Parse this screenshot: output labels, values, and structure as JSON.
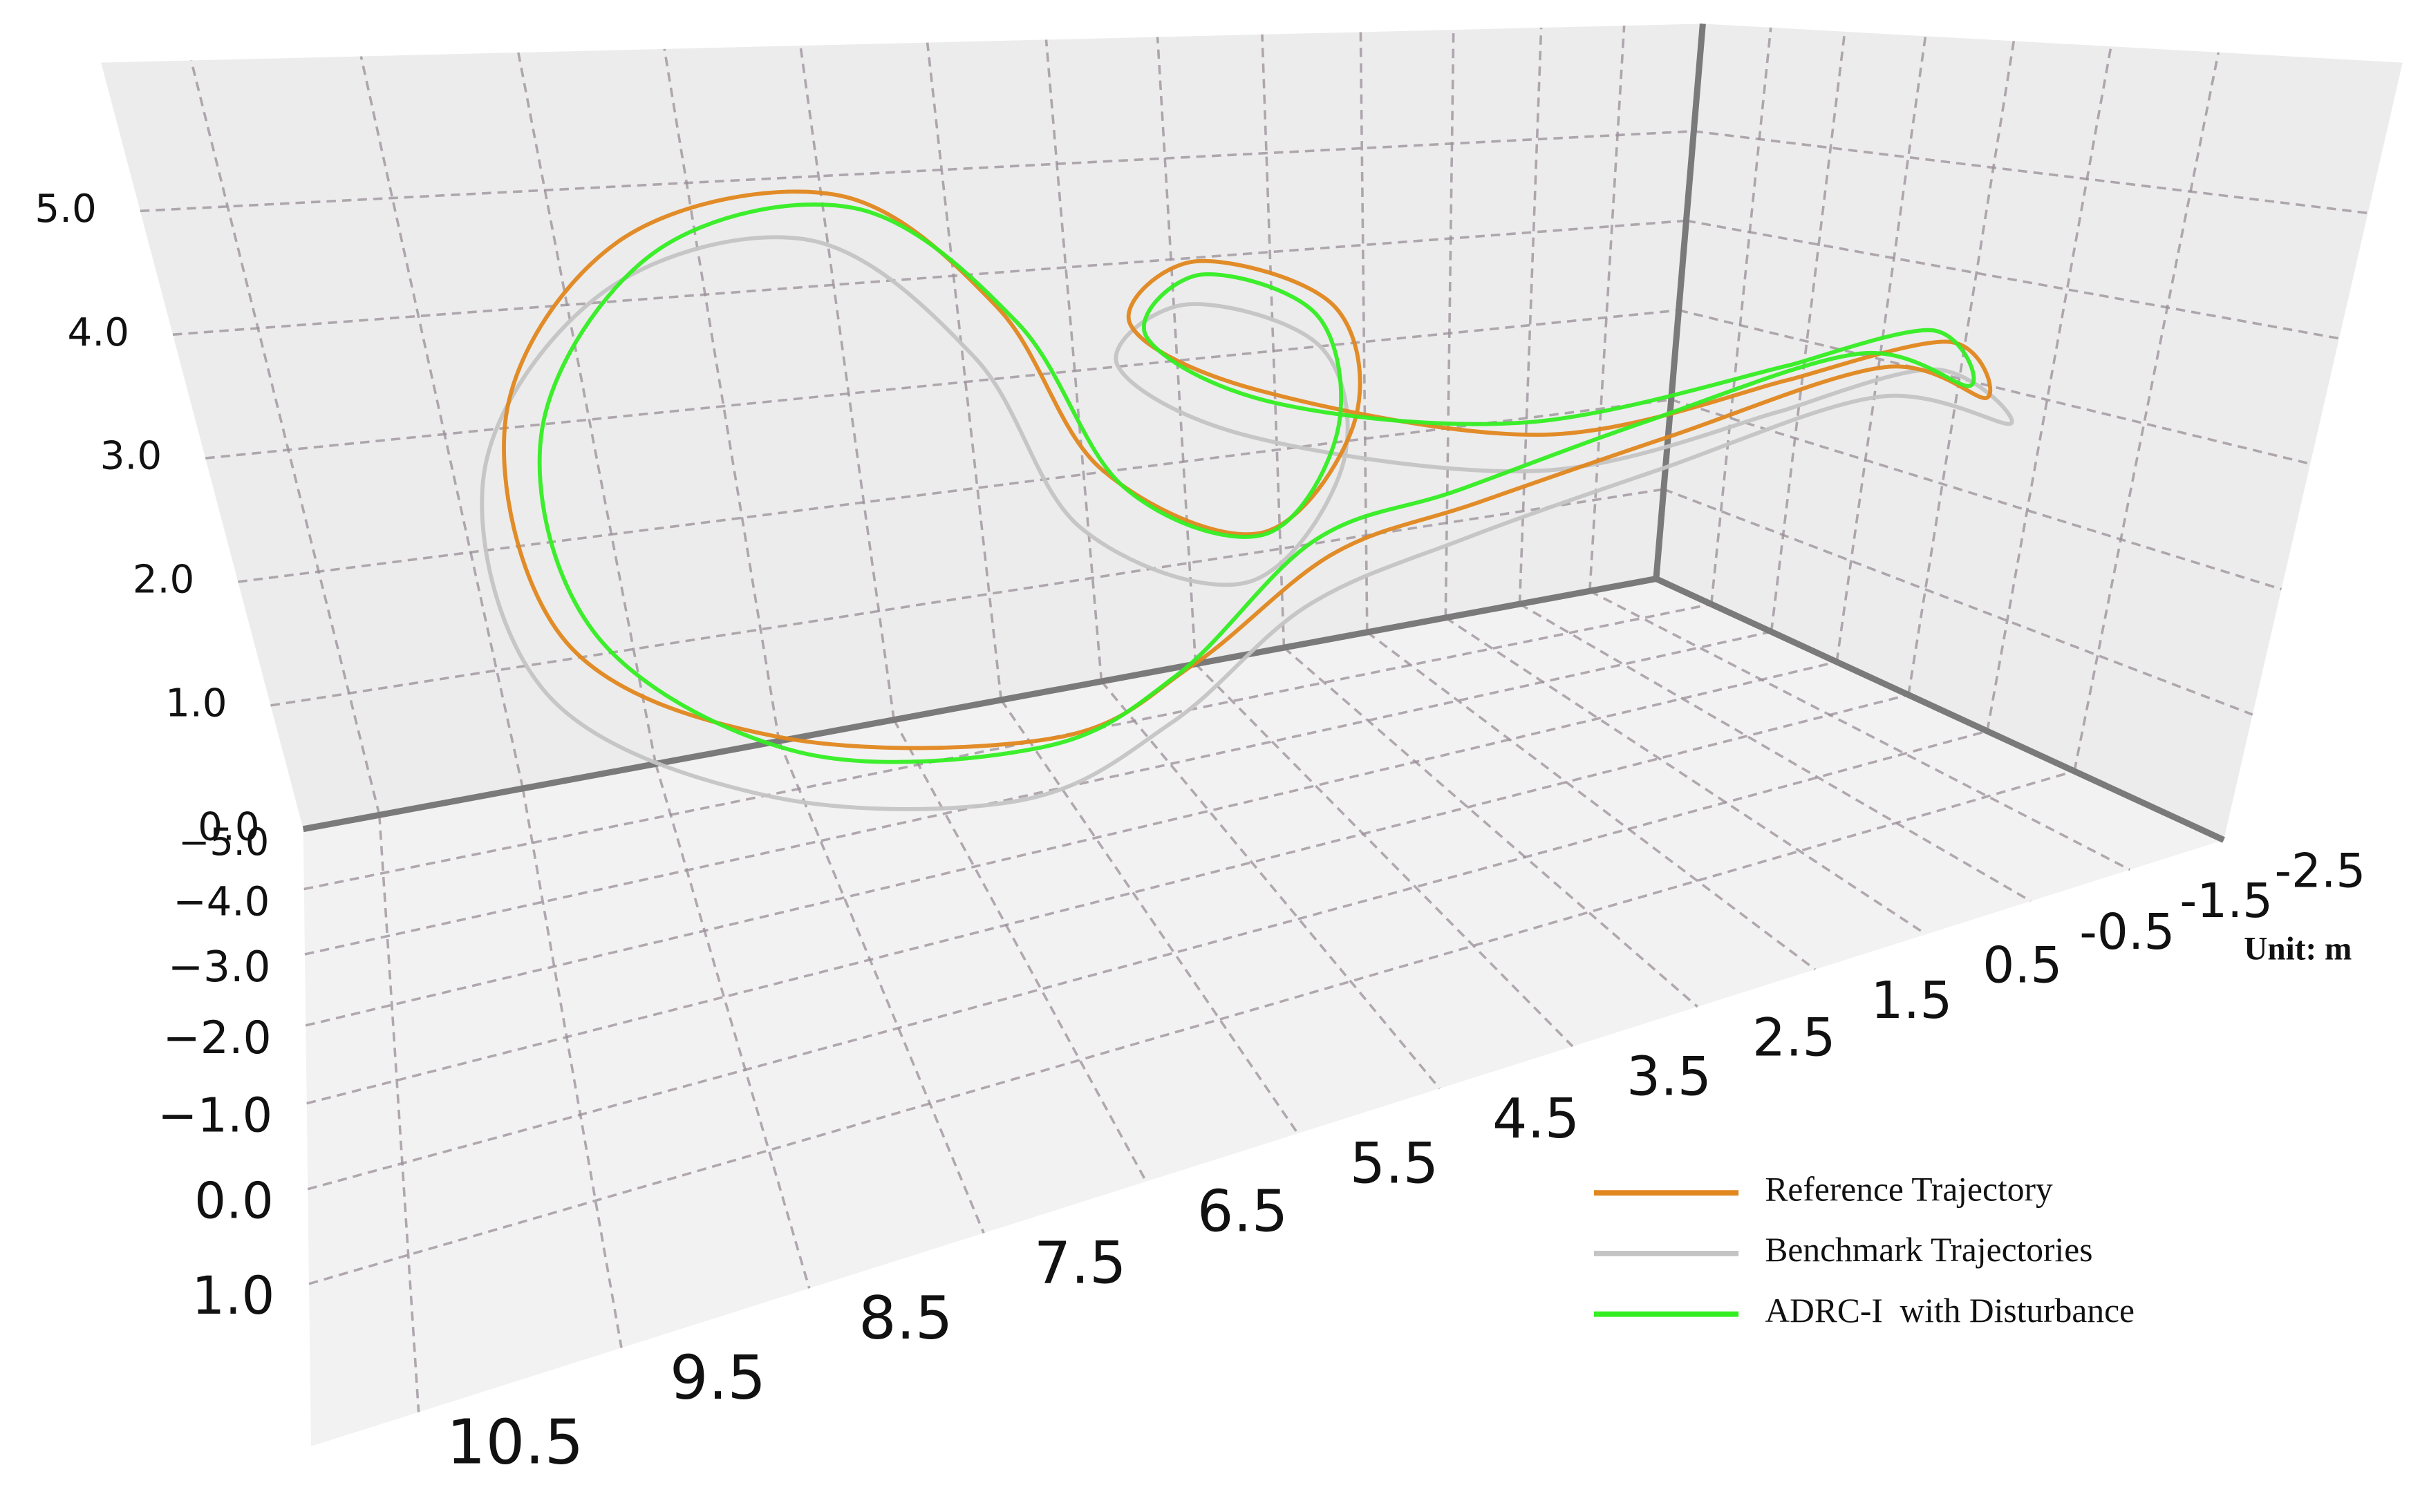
{
  "chart_data": {
    "type": "line3d",
    "annotation": "Unit: m",
    "xlim": [
      11,
      -2.5
    ],
    "ylim": [
      -5,
      2.5
    ],
    "zlim": [
      0,
      6.2
    ],
    "xticks": [
      10.5,
      9.5,
      8.5,
      7.5,
      6.5,
      5.5,
      4.5,
      3.5,
      2.5,
      1.5,
      0.5,
      -0.5,
      -1.5,
      -2.5
    ],
    "yticks": [
      {
        "value": -5,
        "label": "−5.0"
      },
      {
        "value": -4,
        "label": "−4.0"
      },
      {
        "value": -3,
        "label": "−3.0"
      },
      {
        "value": -2,
        "label": "−2.0"
      },
      {
        "value": -1,
        "label": "−1.0"
      },
      {
        "value": 0,
        "label": "0.0"
      },
      {
        "value": 1,
        "label": "1.0"
      }
    ],
    "zticks": [
      {
        "value": 0,
        "label": "0.0"
      },
      {
        "value": 1,
        "label": "1.0"
      },
      {
        "value": 2,
        "label": "2.0"
      },
      {
        "value": 3,
        "label": "3.0"
      },
      {
        "value": 4,
        "label": "4.0"
      },
      {
        "value": 5,
        "label": "5.0"
      }
    ],
    "grid": true,
    "legend": "lower-right",
    "series": [
      {
        "name": "Reference Trajectory",
        "color": "#e0871e",
        "x": [
          -0.2,
          -1.6,
          -1.6,
          -1.4,
          0.8,
          2.7,
          3.9,
          4.8,
          5.8,
          7.7,
          9.0,
          9.1,
          8.1,
          6.5,
          5.6,
          5.3,
          4.4,
          3.4,
          3.2,
          3.9,
          4.4,
          3.7,
          1.8,
          -0.2
        ],
        "y": [
          -0.6,
          -0.3,
          0.2,
          -0.8,
          -0.8,
          -0.6,
          -0.6,
          -1.3,
          -1.8,
          -2.8,
          -3.4,
          -3.0,
          -4.1,
          -4.3,
          -3.2,
          -1.7,
          -0.8,
          -1.3,
          -2.1,
          -3.3,
          -3.6,
          -2.5,
          -1.1,
          -0.6
        ],
        "z": [
          3.4,
          3.6,
          3.2,
          3.3,
          3.0,
          2.8,
          2.6,
          1.6,
          1.0,
          1.0,
          1.8,
          3.8,
          4.8,
          5.0,
          4.2,
          3.2,
          2.8,
          3.4,
          4.2,
          4.4,
          3.8,
          3.4,
          3.1,
          3.4
        ]
      },
      {
        "name": "Benchmark Trajectories",
        "color": "#c4c4c4",
        "x": [
          0.0,
          -1.4,
          -1.7,
          -1.2,
          1.0,
          2.9,
          4.2,
          5.1,
          6.2,
          7.9,
          9.2,
          9.3,
          8.3,
          6.8,
          5.9,
          5.6,
          4.6,
          3.6,
          3.4,
          4.1,
          4.6,
          3.9,
          2.0,
          0.0
        ],
        "y": [
          -0.4,
          -0.2,
          0.4,
          -0.6,
          -0.6,
          -0.4,
          -0.4,
          -1.0,
          -1.5,
          -2.5,
          -3.0,
          -2.7,
          -3.7,
          -4.0,
          -2.8,
          -1.3,
          -0.6,
          -1.1,
          -1.9,
          -3.0,
          -3.4,
          -2.2,
          -0.8,
          -0.4
        ],
        "z": [
          3.2,
          3.4,
          3.0,
          3.1,
          2.8,
          2.6,
          2.3,
          1.3,
          0.7,
          0.7,
          1.6,
          3.5,
          4.5,
          4.7,
          3.9,
          2.9,
          2.5,
          3.1,
          3.9,
          4.1,
          3.5,
          3.1,
          2.9,
          3.2
        ]
      },
      {
        "name": "ADRC-I  with Disturbance",
        "color": "#33ee22",
        "x": [
          -0.3,
          -1.5,
          -1.5,
          -1.3,
          0.9,
          2.8,
          4.0,
          4.9,
          5.9,
          7.6,
          8.8,
          8.9,
          7.9,
          6.4,
          5.5,
          5.2,
          4.3,
          3.5,
          3.3,
          3.9,
          4.3,
          3.6,
          1.9,
          -0.3
        ],
        "y": [
          -0.7,
          -0.4,
          0.1,
          -1.0,
          -1.0,
          -0.7,
          -0.7,
          -1.4,
          -1.9,
          -2.7,
          -3.2,
          -2.9,
          -4.0,
          -4.2,
          -3.0,
          -1.5,
          -1.0,
          -1.4,
          -2.2,
          -3.2,
          -3.5,
          -2.4,
          -1.2,
          -0.7
        ],
        "z": [
          3.5,
          3.7,
          3.3,
          3.4,
          3.1,
          2.9,
          2.7,
          1.5,
          0.9,
          0.9,
          1.9,
          3.7,
          4.7,
          4.9,
          4.1,
          3.1,
          2.7,
          3.3,
          4.1,
          4.3,
          3.7,
          3.3,
          3.2,
          3.5
        ]
      }
    ]
  }
}
